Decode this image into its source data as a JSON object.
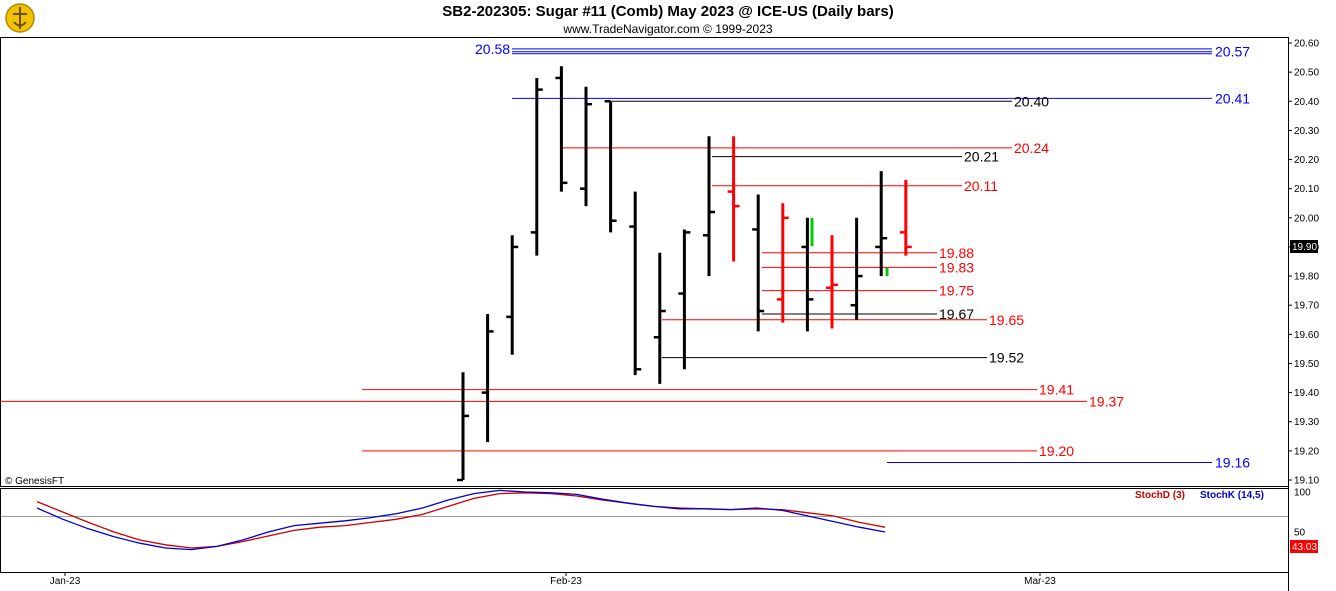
{
  "header": {
    "title": "SB2-202305:  Sugar #11 (Comb) May 2023 @ ICE-US  (Daily bars)",
    "subtitle": "www.TradeNavigator.com © 1999-2023"
  },
  "copyright": "© GenesisFT",
  "last_price_badge": "19.90",
  "stoch_badge": "43.03",
  "colors": {
    "up": "#000000",
    "down": "#ff0000",
    "stochD": "#cc0000",
    "stochK": "#0000cc",
    "accent_green": "#00cc00"
  },
  "chart_data": {
    "type": "ohlc",
    "price_axis": {
      "ylim": [
        19.1,
        20.6
      ],
      "ticks": [
        "20.60",
        "20.50",
        "20.40",
        "20.30",
        "20.20",
        "20.10",
        "20.00",
        "19.90",
        "19.80",
        "19.70",
        "19.60",
        "19.50",
        "19.40",
        "19.30",
        "19.20",
        "19.10"
      ]
    },
    "x_axis": {
      "date_labels": [
        "Jan-23",
        "Feb-23",
        "Mar-23"
      ]
    },
    "bars": [
      {
        "o": 19.1,
        "h": 19.47,
        "l": 19.1,
        "c": 19.32,
        "color": "black"
      },
      {
        "o": 19.4,
        "h": 19.67,
        "l": 19.23,
        "c": 19.61,
        "color": "black"
      },
      {
        "o": 19.66,
        "h": 19.94,
        "l": 19.53,
        "c": 19.9,
        "color": "black"
      },
      {
        "o": 19.95,
        "h": 20.48,
        "l": 19.87,
        "c": 20.44,
        "color": "black"
      },
      {
        "o": 20.48,
        "h": 20.52,
        "l": 20.09,
        "c": 20.12,
        "color": "black"
      },
      {
        "o": 20.1,
        "h": 20.45,
        "l": 20.04,
        "c": 20.39,
        "color": "black"
      },
      {
        "o": 20.4,
        "h": 20.4,
        "l": 19.95,
        "c": 19.99,
        "color": "black"
      },
      {
        "o": 19.97,
        "h": 20.09,
        "l": 19.46,
        "c": 19.48,
        "color": "black"
      },
      {
        "o": 19.59,
        "h": 19.88,
        "l": 19.43,
        "c": 19.68,
        "color": "black"
      },
      {
        "o": 19.74,
        "h": 19.96,
        "l": 19.48,
        "c": 19.95,
        "color": "black"
      },
      {
        "o": 19.94,
        "h": 20.28,
        "l": 19.8,
        "c": 20.02,
        "color": "black"
      },
      {
        "o": 20.09,
        "h": 20.28,
        "l": 19.85,
        "c": 20.04,
        "color": "red"
      },
      {
        "o": 19.96,
        "h": 20.08,
        "l": 19.61,
        "c": 19.68,
        "color": "black"
      },
      {
        "o": 19.72,
        "h": 20.05,
        "l": 19.64,
        "c": 20.0,
        "color": "red"
      },
      {
        "o": 19.9,
        "h": 20.0,
        "l": 19.61,
        "c": 19.72,
        "color": "black"
      },
      {
        "o": 19.76,
        "h": 19.94,
        "l": 19.62,
        "c": 19.77,
        "color": "red"
      },
      {
        "o": 19.7,
        "h": 20.0,
        "l": 19.65,
        "c": 19.8,
        "color": "black"
      },
      {
        "o": 19.9,
        "h": 20.16,
        "l": 19.8,
        "c": 19.93,
        "color": "black"
      },
      {
        "o": 19.95,
        "h": 20.13,
        "l": 19.87,
        "c": 19.9,
        "color": "red"
      }
    ],
    "levels": [
      {
        "value": 20.58,
        "color": "blue",
        "label": "20.58",
        "side": "left"
      },
      {
        "value": 20.57,
        "color": "blue",
        "label": "20.57",
        "side": "right"
      },
      {
        "value": 20.41,
        "color": "blue",
        "label": "20.41",
        "side": "right"
      },
      {
        "value": 20.4,
        "color": "black",
        "label": "20.40",
        "side": "right"
      },
      {
        "value": 20.24,
        "color": "red",
        "label": "20.24",
        "side": "right"
      },
      {
        "value": 20.21,
        "color": "black",
        "label": "20.21",
        "side": "right"
      },
      {
        "value": 20.11,
        "color": "red",
        "label": "20.11",
        "side": "right"
      },
      {
        "value": 19.88,
        "color": "red",
        "label": "19.88",
        "side": "right"
      },
      {
        "value": 19.83,
        "color": "red",
        "label": "19.83",
        "side": "right"
      },
      {
        "value": 19.75,
        "color": "red",
        "label": "19.75",
        "side": "right"
      },
      {
        "value": 19.67,
        "color": "black",
        "label": "19.67",
        "side": "right"
      },
      {
        "value": 19.65,
        "color": "red",
        "label": "19.65",
        "side": "right"
      },
      {
        "value": 19.52,
        "color": "black",
        "label": "19.52",
        "side": "right"
      },
      {
        "value": 19.41,
        "color": "red",
        "label": "19.41",
        "side": "right"
      },
      {
        "value": 19.37,
        "color": "red",
        "label": "19.37",
        "side": "right"
      },
      {
        "value": 19.2,
        "color": "red",
        "label": "19.20",
        "side": "right"
      },
      {
        "value": 19.16,
        "color": "blue",
        "label": "19.16",
        "side": "right"
      }
    ],
    "stochastic": {
      "ylim": [
        0,
        100
      ],
      "ticks": [
        "100",
        "50"
      ],
      "labels": {
        "d": "StochD (3)",
        "k": "StochK (14,5)"
      },
      "stochD": [
        88,
        75,
        62,
        50,
        40,
        34,
        30,
        32,
        38,
        45,
        52,
        56,
        58,
        62,
        66,
        72,
        82,
        92,
        98,
        99,
        98,
        95,
        90,
        86,
        82,
        80,
        79,
        78,
        79,
        78,
        74,
        70,
        62,
        56
      ],
      "stochK": [
        80,
        66,
        54,
        44,
        36,
        30,
        28,
        32,
        40,
        50,
        58,
        61,
        64,
        68,
        73,
        80,
        90,
        98,
        102,
        100,
        99,
        97,
        91,
        86,
        82,
        79,
        79,
        78,
        80,
        77,
        70,
        63,
        56,
        50
      ]
    }
  }
}
